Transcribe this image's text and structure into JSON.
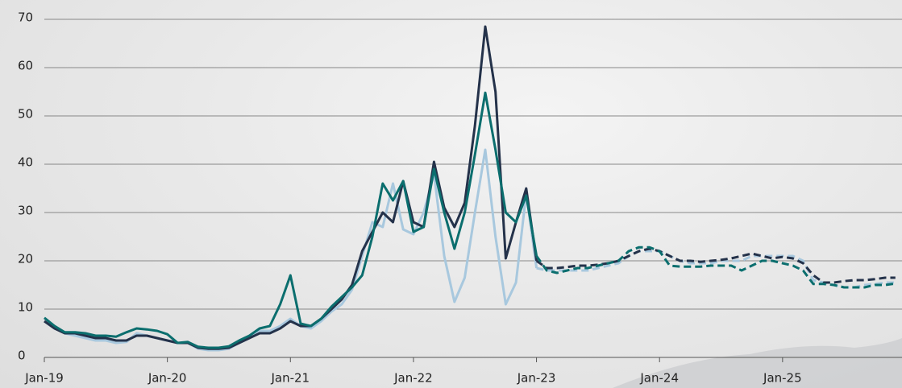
{
  "chart_data": {
    "type": "line",
    "x": [
      "Jan-19",
      null,
      null,
      null,
      null,
      null,
      null,
      null,
      null,
      null,
      null,
      null,
      "Jan-20",
      null,
      null,
      null,
      null,
      null,
      null,
      null,
      null,
      null,
      null,
      null,
      "Jan-21",
      null,
      null,
      null,
      null,
      null,
      null,
      null,
      null,
      null,
      null,
      null,
      "Jan-22",
      null,
      null,
      null,
      null,
      null,
      null,
      null,
      null,
      null,
      null,
      null,
      "Jan-23",
      null,
      null,
      null,
      null,
      null,
      null,
      null,
      null,
      null,
      null,
      null,
      "Jan-24",
      null,
      null,
      null,
      null,
      null,
      null,
      null,
      null,
      null,
      null,
      null,
      "Jan-25",
      null,
      null,
      null,
      null,
      null,
      null,
      null,
      null,
      null,
      null,
      null
    ],
    "ylim": [
      0,
      70
    ],
    "yticks": [
      0,
      10,
      20,
      30,
      40,
      50,
      60,
      70
    ],
    "grid": true,
    "series": [
      {
        "color": "#a8c8de",
        "dashed": false,
        "values": [
          7.5,
          6,
          5,
          4.5,
          4,
          3.5,
          3.5,
          3,
          3.2,
          5,
          4.5,
          4,
          3.5,
          3,
          3,
          1.8,
          1.5,
          1.5,
          1.8,
          3,
          4,
          5.5,
          5.5,
          6.5,
          8,
          6.5,
          6,
          7.5,
          9.5,
          11,
          14,
          21,
          28,
          27,
          36,
          26.5,
          25.5,
          30,
          38,
          21,
          11.5,
          16.5,
          30,
          43,
          25,
          11,
          15.5,
          34,
          18.5,
          null,
          null,
          null,
          null,
          null,
          null,
          null,
          null,
          null,
          null,
          null,
          null,
          null,
          null,
          null,
          null,
          null,
          null,
          null,
          null,
          null,
          null,
          null,
          null,
          null,
          null,
          null,
          null,
          null,
          null,
          null,
          null,
          null,
          null,
          null
        ]
      },
      {
        "color": "#24324a",
        "dashed": false,
        "values": [
          7.5,
          6,
          5,
          5,
          4.5,
          4,
          4,
          3.5,
          3.5,
          4.5,
          4.5,
          4,
          3.5,
          3,
          3,
          2,
          1.8,
          1.8,
          2,
          3,
          4,
          5,
          5,
          6,
          7.5,
          6.5,
          6.5,
          8,
          10,
          12,
          15,
          22,
          26,
          30,
          28,
          36.5,
          28,
          27,
          40.5,
          31,
          27,
          32,
          48,
          68.5,
          55,
          20.5,
          28,
          35,
          20,
          null,
          null,
          null,
          null,
          null,
          null,
          null,
          null,
          null,
          null,
          null,
          null,
          null,
          null,
          null,
          null,
          null,
          null,
          null,
          null,
          null,
          null,
          null,
          null,
          null,
          null,
          null,
          null,
          null,
          null,
          null,
          null,
          null,
          null,
          null
        ]
      },
      {
        "color": "#0b6e6e",
        "dashed": false,
        "values": [
          8.2,
          6.5,
          5.2,
          5.2,
          5,
          4.5,
          4.5,
          4.3,
          5.2,
          6,
          5.8,
          5.5,
          4.8,
          3,
          3.2,
          2.2,
          2,
          2,
          2.3,
          3.5,
          4.5,
          6,
          6.5,
          11,
          17,
          7,
          6.5,
          8,
          10.5,
          12.5,
          14.5,
          17,
          25,
          36,
          32.5,
          36.5,
          26,
          27,
          39,
          30,
          22.5,
          30,
          42,
          54.8,
          43,
          30,
          28,
          33.5,
          21,
          null,
          null,
          null,
          null,
          null,
          null,
          null,
          null,
          null,
          null,
          null,
          null,
          null,
          null,
          null,
          null,
          null,
          null,
          null,
          null,
          null,
          null,
          null,
          null,
          null,
          null,
          null,
          null,
          null,
          null,
          null,
          null,
          null,
          null,
          null
        ]
      },
      {
        "color": "#a8c8de",
        "dashed": true,
        "values": [
          null,
          null,
          null,
          null,
          null,
          null,
          null,
          null,
          null,
          null,
          null,
          null,
          null,
          null,
          null,
          null,
          null,
          null,
          null,
          null,
          null,
          null,
          null,
          null,
          null,
          null,
          null,
          null,
          null,
          null,
          null,
          null,
          null,
          null,
          null,
          null,
          null,
          null,
          null,
          null,
          null,
          null,
          null,
          null,
          null,
          null,
          null,
          null,
          18.5,
          18,
          18,
          18,
          18,
          18,
          18.5,
          19,
          19.5,
          21,
          22,
          22,
          22,
          21,
          20,
          19.5,
          19.5,
          19.5,
          20,
          20,
          20,
          21,
          21,
          21,
          21,
          21,
          20,
          16,
          15.5,
          15,
          14.5,
          14.5,
          15,
          15.2,
          15.5,
          15.5
        ]
      },
      {
        "color": "#24324a",
        "dashed": true,
        "values": [
          null,
          null,
          null,
          null,
          null,
          null,
          null,
          null,
          null,
          null,
          null,
          null,
          null,
          null,
          null,
          null,
          null,
          null,
          null,
          null,
          null,
          null,
          null,
          null,
          null,
          null,
          null,
          null,
          null,
          null,
          null,
          null,
          null,
          null,
          null,
          null,
          null,
          null,
          null,
          null,
          null,
          null,
          null,
          null,
          null,
          null,
          null,
          null,
          20,
          18.5,
          18.5,
          18.7,
          19,
          19,
          19.2,
          19.5,
          20,
          21,
          22,
          22.5,
          22,
          21,
          20,
          20,
          19.8,
          20,
          20.2,
          20.5,
          21,
          21.5,
          21,
          20.5,
          20.8,
          20.5,
          19.5,
          17,
          15.5,
          15.5,
          15.8,
          16,
          16,
          16.2,
          16.5,
          16.5
        ]
      },
      {
        "color": "#0b6e6e",
        "dashed": true,
        "values": [
          null,
          null,
          null,
          null,
          null,
          null,
          null,
          null,
          null,
          null,
          null,
          null,
          null,
          null,
          null,
          null,
          null,
          null,
          null,
          null,
          null,
          null,
          null,
          null,
          null,
          null,
          null,
          null,
          null,
          null,
          null,
          null,
          null,
          null,
          null,
          null,
          null,
          null,
          null,
          null,
          null,
          null,
          null,
          null,
          null,
          null,
          null,
          null,
          21,
          18,
          17.5,
          18,
          18.5,
          18.5,
          19,
          19.5,
          20,
          22,
          22.8,
          22.8,
          22,
          19,
          18.8,
          18.8,
          18.8,
          19,
          19,
          19,
          18,
          19,
          20,
          20,
          19.5,
          19,
          18,
          15.2,
          15.2,
          15,
          14.5,
          14.5,
          14.5,
          15,
          15,
          15.3
        ]
      }
    ]
  }
}
